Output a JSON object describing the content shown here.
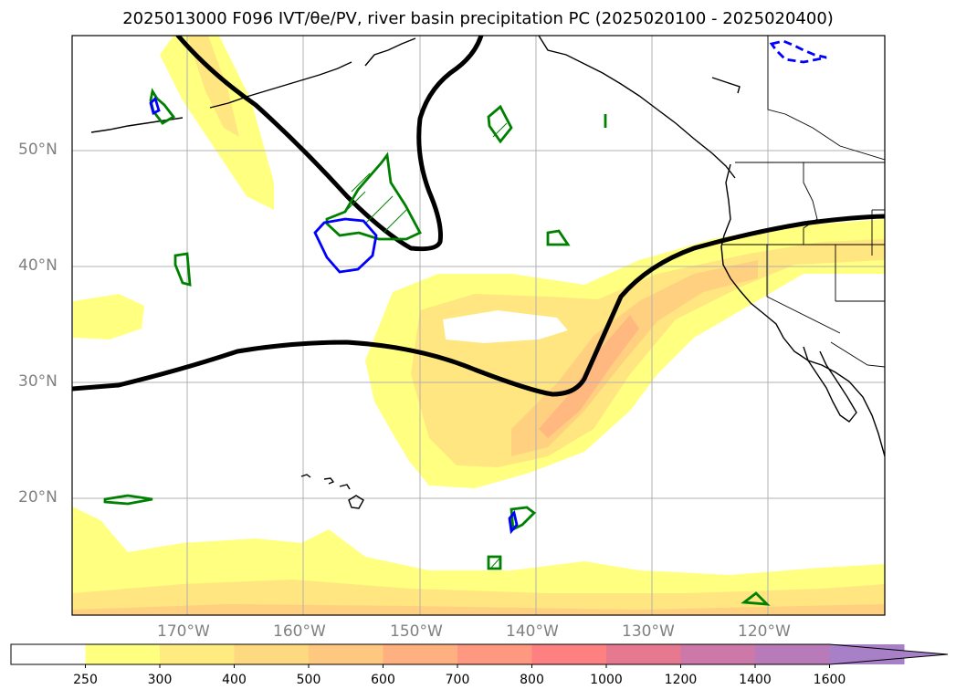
{
  "title": "2025013000 F096 IVT/θe/PV, river basin precipitation PC (2025020100 - 2025020400)",
  "lat_labels": [
    "50°N",
    "40°N",
    "30°N",
    "20°N"
  ],
  "lon_labels": [
    "170°W",
    "160°W",
    "150°W",
    "140°W",
    "130°W",
    "120°W"
  ],
  "colorbar": {
    "levels": [
      "250",
      "300",
      "400",
      "500",
      "600",
      "700",
      "800",
      "1000",
      "1200",
      "1400",
      "1600"
    ],
    "colors": [
      "#ffffff",
      "#ffff80",
      "#ffeb80",
      "#ffd980",
      "#ffc880",
      "#ffb080",
      "#ff9880",
      "#ff8080",
      "#e67890",
      "#cc78a8",
      "#b87ab8",
      "#a880c8"
    ]
  },
  "colors": {
    "ivt_light": "#ffff80",
    "ivt_mid": "#ffe680",
    "ivt_dark": "#ffd080",
    "ivt_darker": "#ffb880",
    "pv_contour": "#000000",
    "precip_green": "#008000",
    "precip_blue": "#0000ff"
  }
}
